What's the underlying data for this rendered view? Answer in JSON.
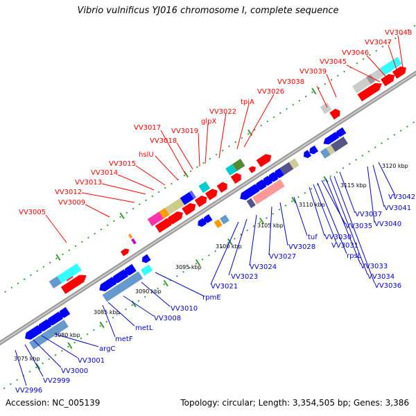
{
  "title": "Vibrio vulnificus YJ016 chromosome I, complete sequence",
  "accession": "Accession: NC_005139",
  "topology": "Topology: circular; Length: 3,354,505 bp; Genes: 3,386",
  "colors": {
    "top_label": "#ff0000",
    "bottom_label": "#0000cc",
    "backbone": "#999999",
    "track_dot": "#339933"
  },
  "ticks": [
    "3075 kbp",
    "3080 kbp",
    "3085 kbp",
    "3090 kbp",
    "3095 kbp",
    "3100 kbp",
    "3105 kbp",
    "3110 kbp",
    "3115 kbp",
    "3120 kbp"
  ],
  "top_labels": [
    "VV3005",
    "VV3009",
    "VV3012",
    "VV3013",
    "VV3014",
    "VV3015",
    "hslU",
    "VV3017",
    "VV3018",
    "VV3019",
    "glpX",
    "VV3022",
    "tpiA",
    "VV3026",
    "VV3038",
    "VV3039",
    "VV3045",
    "VV3046",
    "VV3047",
    "VV3048"
  ],
  "bottom_labels": [
    "VV2996",
    "VV2999",
    "VV3000",
    "VV3001",
    "argC",
    "metF",
    "metL",
    "VV3008",
    "VV3010",
    "rpmE",
    "VV3021",
    "VV3023",
    "VV3024",
    "VV3027",
    "VV3028",
    "tuf",
    "VV3030",
    "VV3031",
    "rpsL",
    "VV3033",
    "VV3034",
    "VV3036",
    "VV3035",
    "VV3037",
    "VV3040",
    "VV3041",
    "VV3042"
  ]
}
